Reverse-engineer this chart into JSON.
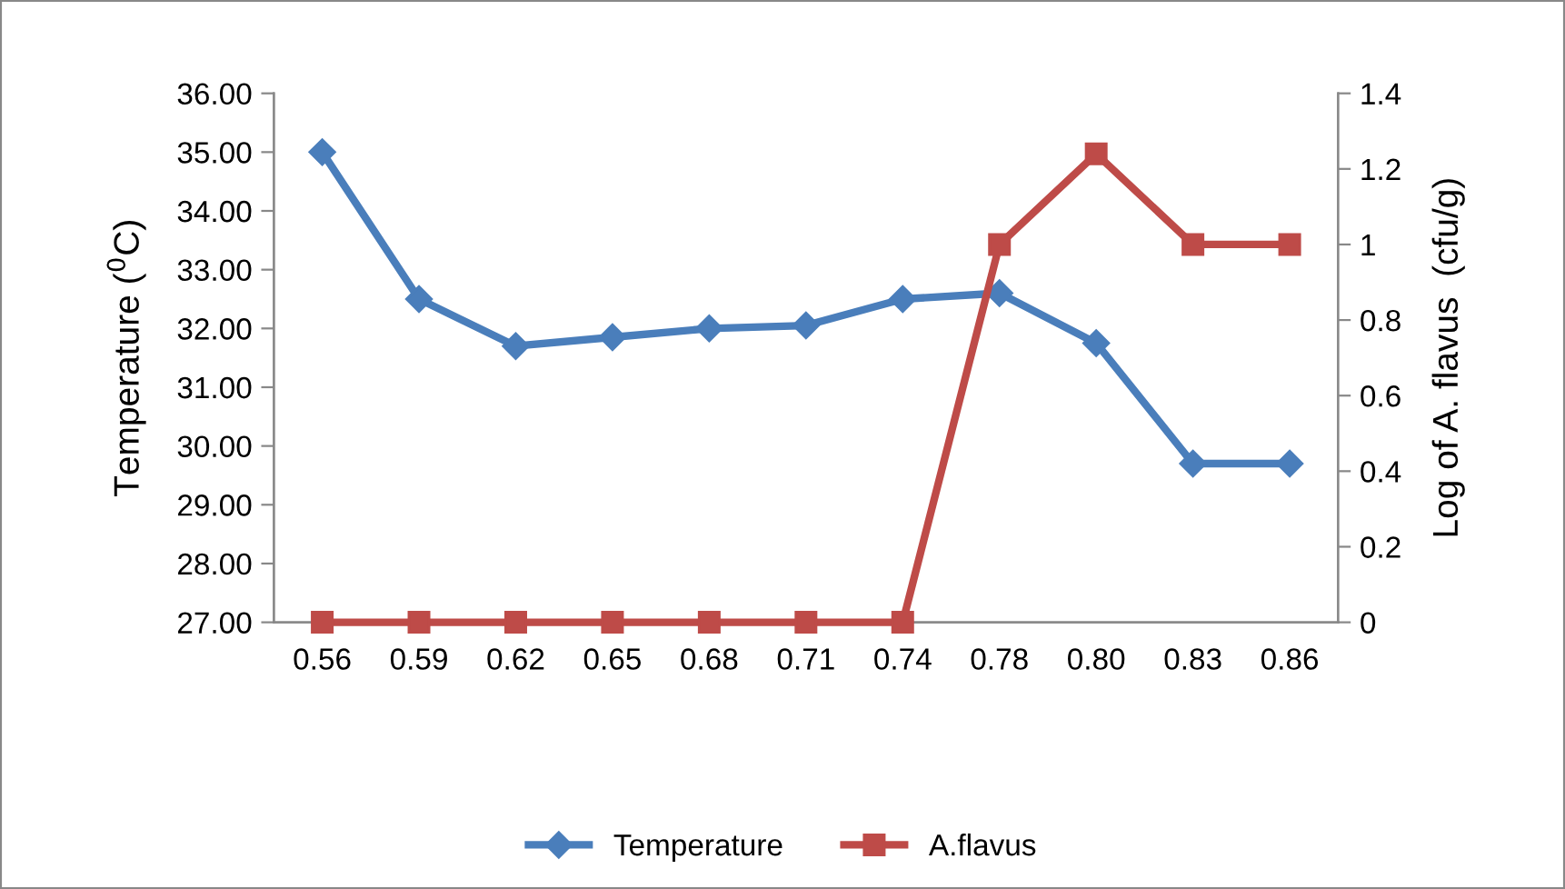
{
  "chart_data": {
    "type": "line",
    "categories": [
      "0.56",
      "0.59",
      "0.62",
      "0.65",
      "0.68",
      "0.71",
      "0.74",
      "0.78",
      "0.80",
      "0.83",
      "0.86"
    ],
    "ylabel": "Temperature ($^{0}$C)",
    "y2label": "Log of A. flavus  (cfu/g)",
    "series": [
      {
        "name": "Temperature",
        "color": "#4a7ebb",
        "marker": "diamond",
        "values": [
          35.0,
          32.5,
          31.7,
          31.85,
          32.0,
          32.05,
          32.5,
          32.6,
          31.75,
          29.7,
          29.7
        ]
      },
      {
        "name": "A.flavus",
        "color": "#be4b48",
        "marker": "square",
        "axis": "y2",
        "values": [
          0,
          0,
          0,
          0,
          0,
          0,
          0,
          1.0,
          1.24,
          1.0,
          1.0
        ]
      }
    ],
    "ylim": [
      27,
      36
    ],
    "yticks": [
      {
        "value": 27,
        "label": "27.00"
      },
      {
        "value": 28,
        "label": "28.00"
      },
      {
        "value": 29,
        "label": "29.00"
      },
      {
        "value": 30,
        "label": "30.00"
      },
      {
        "value": 31,
        "label": "31.00"
      },
      {
        "value": 32,
        "label": "32.00"
      },
      {
        "value": 33,
        "label": "33.00"
      },
      {
        "value": 34,
        "label": "34.00"
      },
      {
        "value": 35,
        "label": "35.00"
      },
      {
        "value": 36,
        "label": "36.00"
      }
    ],
    "y2lim": [
      0,
      1.4
    ],
    "y2ticks": [
      0,
      0.2,
      0.4,
      0.6,
      0.8,
      1,
      1.2,
      1.4
    ],
    "legend": "bottom",
    "grid": false
  }
}
